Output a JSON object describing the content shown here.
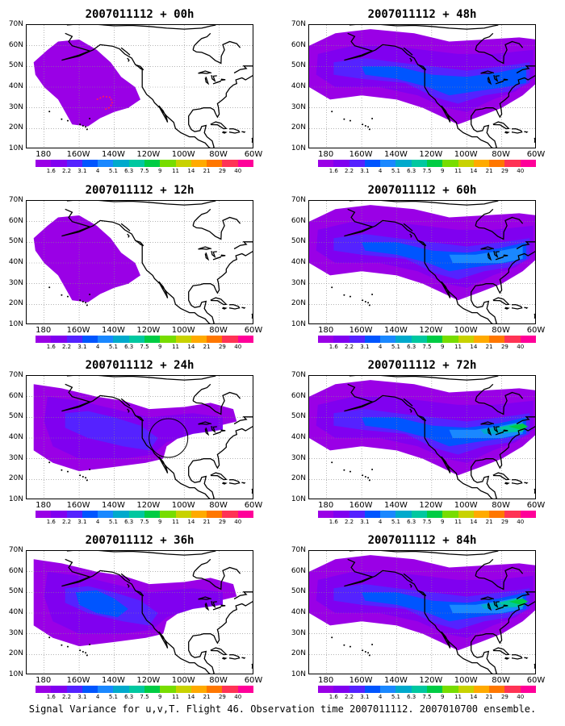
{
  "caption": "Signal Variance for u,v,T. Flight 46. Observation time 2007011112. 2007010700 ensemble.",
  "lat_labels": [
    "70N",
    "60N",
    "50N",
    "40N",
    "30N",
    "20N",
    "10N"
  ],
  "lon_labels": [
    "180",
    "160W",
    "140W",
    "120W",
    "100W",
    "80W",
    "60W"
  ],
  "colorbar_labels": [
    "1.6",
    "2.2",
    "3.1",
    "4",
    "5.1",
    "6.3",
    "7.5",
    "9",
    "11",
    "14",
    "21",
    "29",
    "40"
  ],
  "colors": {
    "scale": [
      "#9a00e6",
      "#8000f0",
      "#5522ff",
      "#0055ff",
      "#1a88ff",
      "#00aacc",
      "#00c8a0",
      "#00cc44",
      "#77dd00",
      "#c8d200",
      "#ffaa00",
      "#ff7700",
      "#ff3355",
      "#ff0099"
    ],
    "land_outline": "#000000",
    "grid": "#888888",
    "observation_marks": "#ff1a5a"
  },
  "panels": [
    {
      "title": "2007011112 + 00h",
      "lead_hours": 0,
      "max_level_index": 0,
      "extent": "small"
    },
    {
      "title": "2007011112 + 12h",
      "lead_hours": 12,
      "max_level_index": 0,
      "extent": "small"
    },
    {
      "title": "2007011112 + 24h",
      "lead_hours": 24,
      "max_level_index": 2,
      "extent": "medium"
    },
    {
      "title": "2007011112 + 36h",
      "lead_hours": 36,
      "max_level_index": 3,
      "extent": "medium"
    },
    {
      "title": "2007011112 + 48h",
      "lead_hours": 48,
      "max_level_index": 3,
      "extent": "large"
    },
    {
      "title": "2007011112 + 60h",
      "lead_hours": 60,
      "max_level_index": 4,
      "extent": "large"
    },
    {
      "title": "2007011112 + 72h",
      "lead_hours": 72,
      "max_level_index": 7,
      "extent": "large"
    },
    {
      "title": "2007011112 + 84h",
      "lead_hours": 84,
      "max_level_index": 7,
      "extent": "large"
    }
  ]
}
